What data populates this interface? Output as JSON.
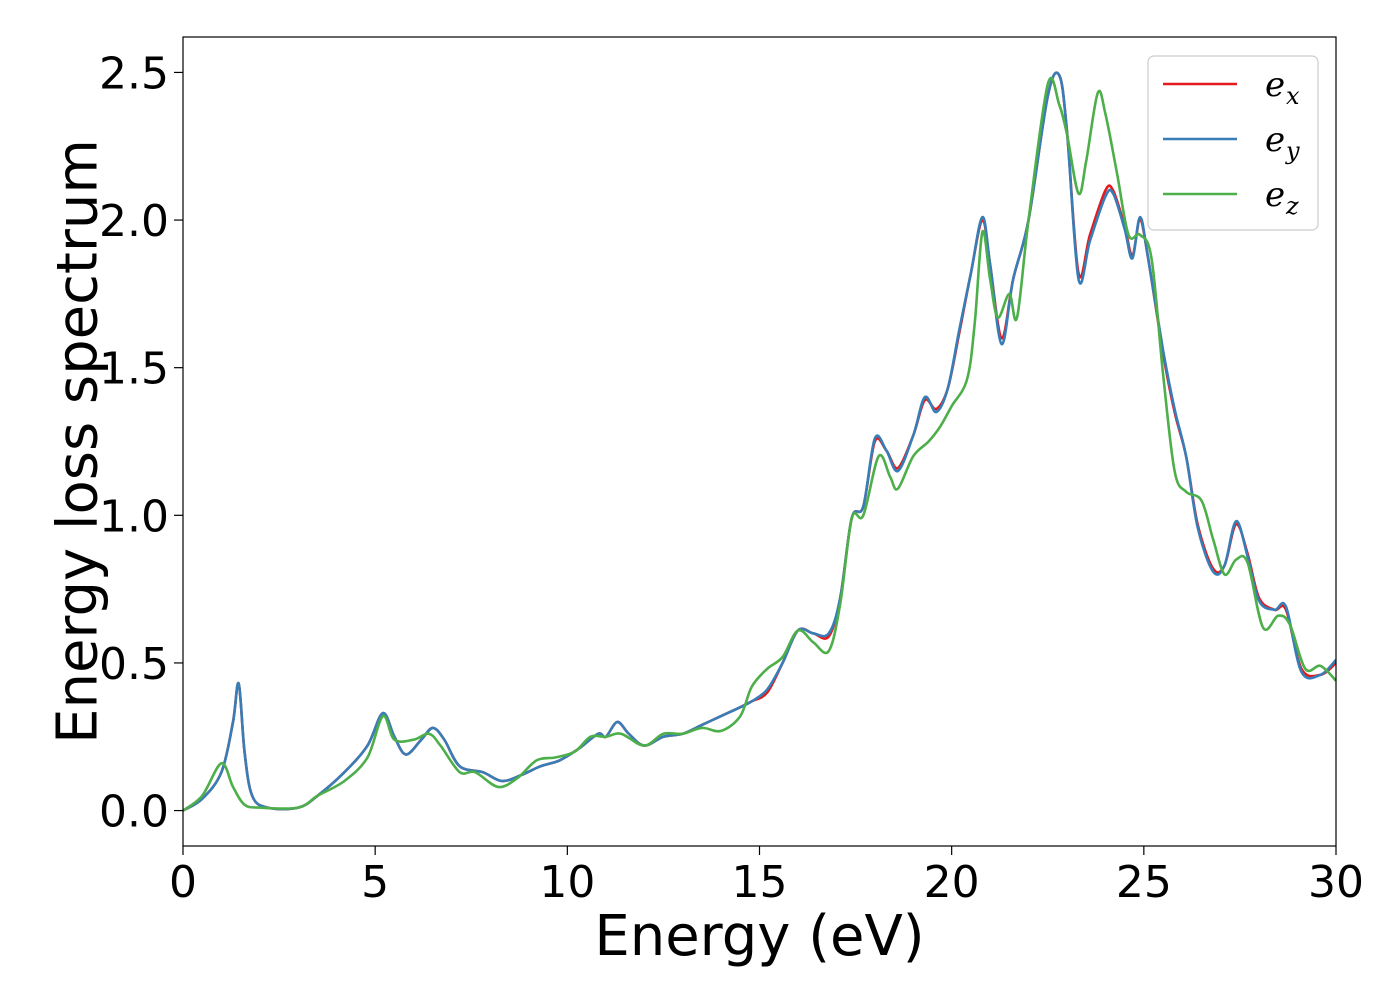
{
  "chart_data": {
    "type": "line",
    "title": "",
    "xlabel": "Energy (eV)",
    "ylabel": "Energy loss spectrum",
    "xlim": [
      0,
      30
    ],
    "ylim": [
      -0.12,
      2.62
    ],
    "xticks": [
      0,
      5,
      10,
      15,
      20,
      25,
      30
    ],
    "yticks": [
      0.0,
      0.5,
      1.0,
      1.5,
      2.0,
      2.5
    ],
    "xtick_labels": [
      "0",
      "5",
      "10",
      "15",
      "20",
      "25",
      "30"
    ],
    "ytick_labels": [
      "0.0",
      "0.5",
      "1.0",
      "1.5",
      "2.0",
      "2.5"
    ],
    "grid": false,
    "legend_position": "top-right",
    "series": [
      {
        "name": "e_x",
        "symbol": "e",
        "subscript": "x",
        "color": "#e41a1c",
        "points": [
          [
            0,
            0
          ],
          [
            0.5,
            0.04
          ],
          [
            1.0,
            0.13
          ],
          [
            1.3,
            0.3
          ],
          [
            1.45,
            0.43
          ],
          [
            1.6,
            0.2
          ],
          [
            1.8,
            0.05
          ],
          [
            2.2,
            0.01
          ],
          [
            3.0,
            0.01
          ],
          [
            3.5,
            0.05
          ],
          [
            4.2,
            0.13
          ],
          [
            4.8,
            0.22
          ],
          [
            5.2,
            0.33
          ],
          [
            5.5,
            0.25
          ],
          [
            5.8,
            0.19
          ],
          [
            6.2,
            0.24
          ],
          [
            6.5,
            0.28
          ],
          [
            6.8,
            0.24
          ],
          [
            7.2,
            0.15
          ],
          [
            7.8,
            0.13
          ],
          [
            8.3,
            0.1
          ],
          [
            8.8,
            0.12
          ],
          [
            9.3,
            0.15
          ],
          [
            9.8,
            0.17
          ],
          [
            10.3,
            0.21
          ],
          [
            10.8,
            0.26
          ],
          [
            11.0,
            0.25
          ],
          [
            11.3,
            0.3
          ],
          [
            11.6,
            0.26
          ],
          [
            12.0,
            0.22
          ],
          [
            12.5,
            0.25
          ],
          [
            13.0,
            0.26
          ],
          [
            13.5,
            0.29
          ],
          [
            14.0,
            0.32
          ],
          [
            14.5,
            0.35
          ],
          [
            14.8,
            0.37
          ],
          [
            15.2,
            0.4
          ],
          [
            15.6,
            0.5
          ],
          [
            16.0,
            0.61
          ],
          [
            16.4,
            0.6
          ],
          [
            16.8,
            0.59
          ],
          [
            17.1,
            0.72
          ],
          [
            17.4,
            0.99
          ],
          [
            17.7,
            1.03
          ],
          [
            18.0,
            1.25
          ],
          [
            18.3,
            1.22
          ],
          [
            18.6,
            1.16
          ],
          [
            19.0,
            1.27
          ],
          [
            19.3,
            1.39
          ],
          [
            19.6,
            1.36
          ],
          [
            19.9,
            1.43
          ],
          [
            20.2,
            1.62
          ],
          [
            20.5,
            1.82
          ],
          [
            20.8,
            2.0
          ],
          [
            21.0,
            1.85
          ],
          [
            21.3,
            1.6
          ],
          [
            21.6,
            1.8
          ],
          [
            22.0,
            2.0
          ],
          [
            22.5,
            2.42
          ],
          [
            22.8,
            2.49
          ],
          [
            23.0,
            2.3
          ],
          [
            23.3,
            1.82
          ],
          [
            23.6,
            1.95
          ],
          [
            24.0,
            2.1
          ],
          [
            24.2,
            2.1
          ],
          [
            24.5,
            1.98
          ],
          [
            24.7,
            1.88
          ],
          [
            24.9,
            2.0
          ],
          [
            25.1,
            1.88
          ],
          [
            25.5,
            1.55
          ],
          [
            25.8,
            1.35
          ],
          [
            26.1,
            1.2
          ],
          [
            26.4,
            0.97
          ],
          [
            26.8,
            0.82
          ],
          [
            27.1,
            0.83
          ],
          [
            27.4,
            0.97
          ],
          [
            27.7,
            0.87
          ],
          [
            28.0,
            0.72
          ],
          [
            28.4,
            0.68
          ],
          [
            28.7,
            0.68
          ],
          [
            29.1,
            0.48
          ],
          [
            29.6,
            0.46
          ],
          [
            30.0,
            0.5
          ]
        ]
      },
      {
        "name": "e_y",
        "symbol": "e",
        "subscript": "y",
        "color": "#377eb8",
        "points": [
          [
            0,
            0
          ],
          [
            0.5,
            0.04
          ],
          [
            1.0,
            0.13
          ],
          [
            1.3,
            0.3
          ],
          [
            1.45,
            0.43
          ],
          [
            1.6,
            0.2
          ],
          [
            1.8,
            0.05
          ],
          [
            2.2,
            0.01
          ],
          [
            3.0,
            0.01
          ],
          [
            3.5,
            0.05
          ],
          [
            4.2,
            0.13
          ],
          [
            4.8,
            0.22
          ],
          [
            5.2,
            0.33
          ],
          [
            5.5,
            0.25
          ],
          [
            5.8,
            0.19
          ],
          [
            6.2,
            0.24
          ],
          [
            6.5,
            0.28
          ],
          [
            6.8,
            0.24
          ],
          [
            7.2,
            0.15
          ],
          [
            7.8,
            0.13
          ],
          [
            8.3,
            0.1
          ],
          [
            8.8,
            0.12
          ],
          [
            9.3,
            0.15
          ],
          [
            9.8,
            0.17
          ],
          [
            10.3,
            0.21
          ],
          [
            10.8,
            0.26
          ],
          [
            11.0,
            0.25
          ],
          [
            11.3,
            0.3
          ],
          [
            11.6,
            0.26
          ],
          [
            12.0,
            0.22
          ],
          [
            12.5,
            0.25
          ],
          [
            13.0,
            0.26
          ],
          [
            13.5,
            0.29
          ],
          [
            14.0,
            0.32
          ],
          [
            14.5,
            0.35
          ],
          [
            14.8,
            0.37
          ],
          [
            15.2,
            0.41
          ],
          [
            15.6,
            0.5
          ],
          [
            16.0,
            0.61
          ],
          [
            16.4,
            0.6
          ],
          [
            16.8,
            0.6
          ],
          [
            17.1,
            0.72
          ],
          [
            17.4,
            0.99
          ],
          [
            17.7,
            1.03
          ],
          [
            18.0,
            1.26
          ],
          [
            18.3,
            1.22
          ],
          [
            18.6,
            1.15
          ],
          [
            19.0,
            1.27
          ],
          [
            19.3,
            1.4
          ],
          [
            19.6,
            1.35
          ],
          [
            19.9,
            1.43
          ],
          [
            20.2,
            1.63
          ],
          [
            20.5,
            1.82
          ],
          [
            20.8,
            2.01
          ],
          [
            21.0,
            1.85
          ],
          [
            21.3,
            1.58
          ],
          [
            21.6,
            1.8
          ],
          [
            22.0,
            2.0
          ],
          [
            22.5,
            2.42
          ],
          [
            22.8,
            2.49
          ],
          [
            23.0,
            2.3
          ],
          [
            23.3,
            1.8
          ],
          [
            23.6,
            1.93
          ],
          [
            24.0,
            2.08
          ],
          [
            24.2,
            2.09
          ],
          [
            24.5,
            1.97
          ],
          [
            24.7,
            1.87
          ],
          [
            24.9,
            2.01
          ],
          [
            25.1,
            1.88
          ],
          [
            25.5,
            1.56
          ],
          [
            25.8,
            1.36
          ],
          [
            26.1,
            1.2
          ],
          [
            26.4,
            0.96
          ],
          [
            26.8,
            0.81
          ],
          [
            27.1,
            0.83
          ],
          [
            27.4,
            0.98
          ],
          [
            27.7,
            0.86
          ],
          [
            28.0,
            0.71
          ],
          [
            28.4,
            0.68
          ],
          [
            28.7,
            0.69
          ],
          [
            29.1,
            0.47
          ],
          [
            29.6,
            0.46
          ],
          [
            30.0,
            0.51
          ]
        ]
      },
      {
        "name": "e_z",
        "symbol": "e",
        "subscript": "z",
        "color": "#4daf4a",
        "points": [
          [
            0,
            0
          ],
          [
            0.5,
            0.05
          ],
          [
            1.0,
            0.16
          ],
          [
            1.3,
            0.08
          ],
          [
            1.6,
            0.02
          ],
          [
            2.0,
            0.01
          ],
          [
            3.0,
            0.01
          ],
          [
            3.5,
            0.05
          ],
          [
            4.2,
            0.1
          ],
          [
            4.8,
            0.18
          ],
          [
            5.2,
            0.32
          ],
          [
            5.5,
            0.24
          ],
          [
            6.0,
            0.24
          ],
          [
            6.4,
            0.26
          ],
          [
            6.7,
            0.22
          ],
          [
            7.2,
            0.13
          ],
          [
            7.6,
            0.13
          ],
          [
            8.2,
            0.08
          ],
          [
            8.7,
            0.11
          ],
          [
            9.2,
            0.17
          ],
          [
            9.7,
            0.18
          ],
          [
            10.2,
            0.2
          ],
          [
            10.6,
            0.25
          ],
          [
            11.0,
            0.25
          ],
          [
            11.4,
            0.26
          ],
          [
            12.0,
            0.22
          ],
          [
            12.5,
            0.26
          ],
          [
            13.0,
            0.26
          ],
          [
            13.5,
            0.28
          ],
          [
            14.0,
            0.27
          ],
          [
            14.5,
            0.32
          ],
          [
            14.8,
            0.42
          ],
          [
            15.2,
            0.48
          ],
          [
            15.6,
            0.52
          ],
          [
            16.0,
            0.61
          ],
          [
            16.4,
            0.57
          ],
          [
            16.8,
            0.54
          ],
          [
            17.1,
            0.7
          ],
          [
            17.4,
            0.99
          ],
          [
            17.7,
            1.0
          ],
          [
            18.1,
            1.2
          ],
          [
            18.4,
            1.13
          ],
          [
            18.6,
            1.09
          ],
          [
            19.0,
            1.2
          ],
          [
            19.4,
            1.25
          ],
          [
            19.7,
            1.3
          ],
          [
            20.0,
            1.37
          ],
          [
            20.4,
            1.46
          ],
          [
            20.6,
            1.65
          ],
          [
            20.8,
            1.96
          ],
          [
            21.0,
            1.8
          ],
          [
            21.2,
            1.67
          ],
          [
            21.5,
            1.75
          ],
          [
            21.7,
            1.67
          ],
          [
            22.0,
            2.0
          ],
          [
            22.5,
            2.46
          ],
          [
            22.8,
            2.39
          ],
          [
            23.0,
            2.29
          ],
          [
            23.3,
            2.09
          ],
          [
            23.5,
            2.2
          ],
          [
            23.8,
            2.43
          ],
          [
            24.0,
            2.36
          ],
          [
            24.3,
            2.16
          ],
          [
            24.6,
            1.95
          ],
          [
            24.9,
            1.95
          ],
          [
            25.2,
            1.87
          ],
          [
            25.5,
            1.48
          ],
          [
            25.8,
            1.15
          ],
          [
            26.1,
            1.08
          ],
          [
            26.5,
            1.05
          ],
          [
            26.8,
            0.92
          ],
          [
            27.1,
            0.8
          ],
          [
            27.4,
            0.85
          ],
          [
            27.7,
            0.84
          ],
          [
            28.1,
            0.62
          ],
          [
            28.5,
            0.66
          ],
          [
            28.8,
            0.63
          ],
          [
            29.2,
            0.48
          ],
          [
            29.6,
            0.49
          ],
          [
            30.0,
            0.44
          ]
        ]
      }
    ]
  }
}
